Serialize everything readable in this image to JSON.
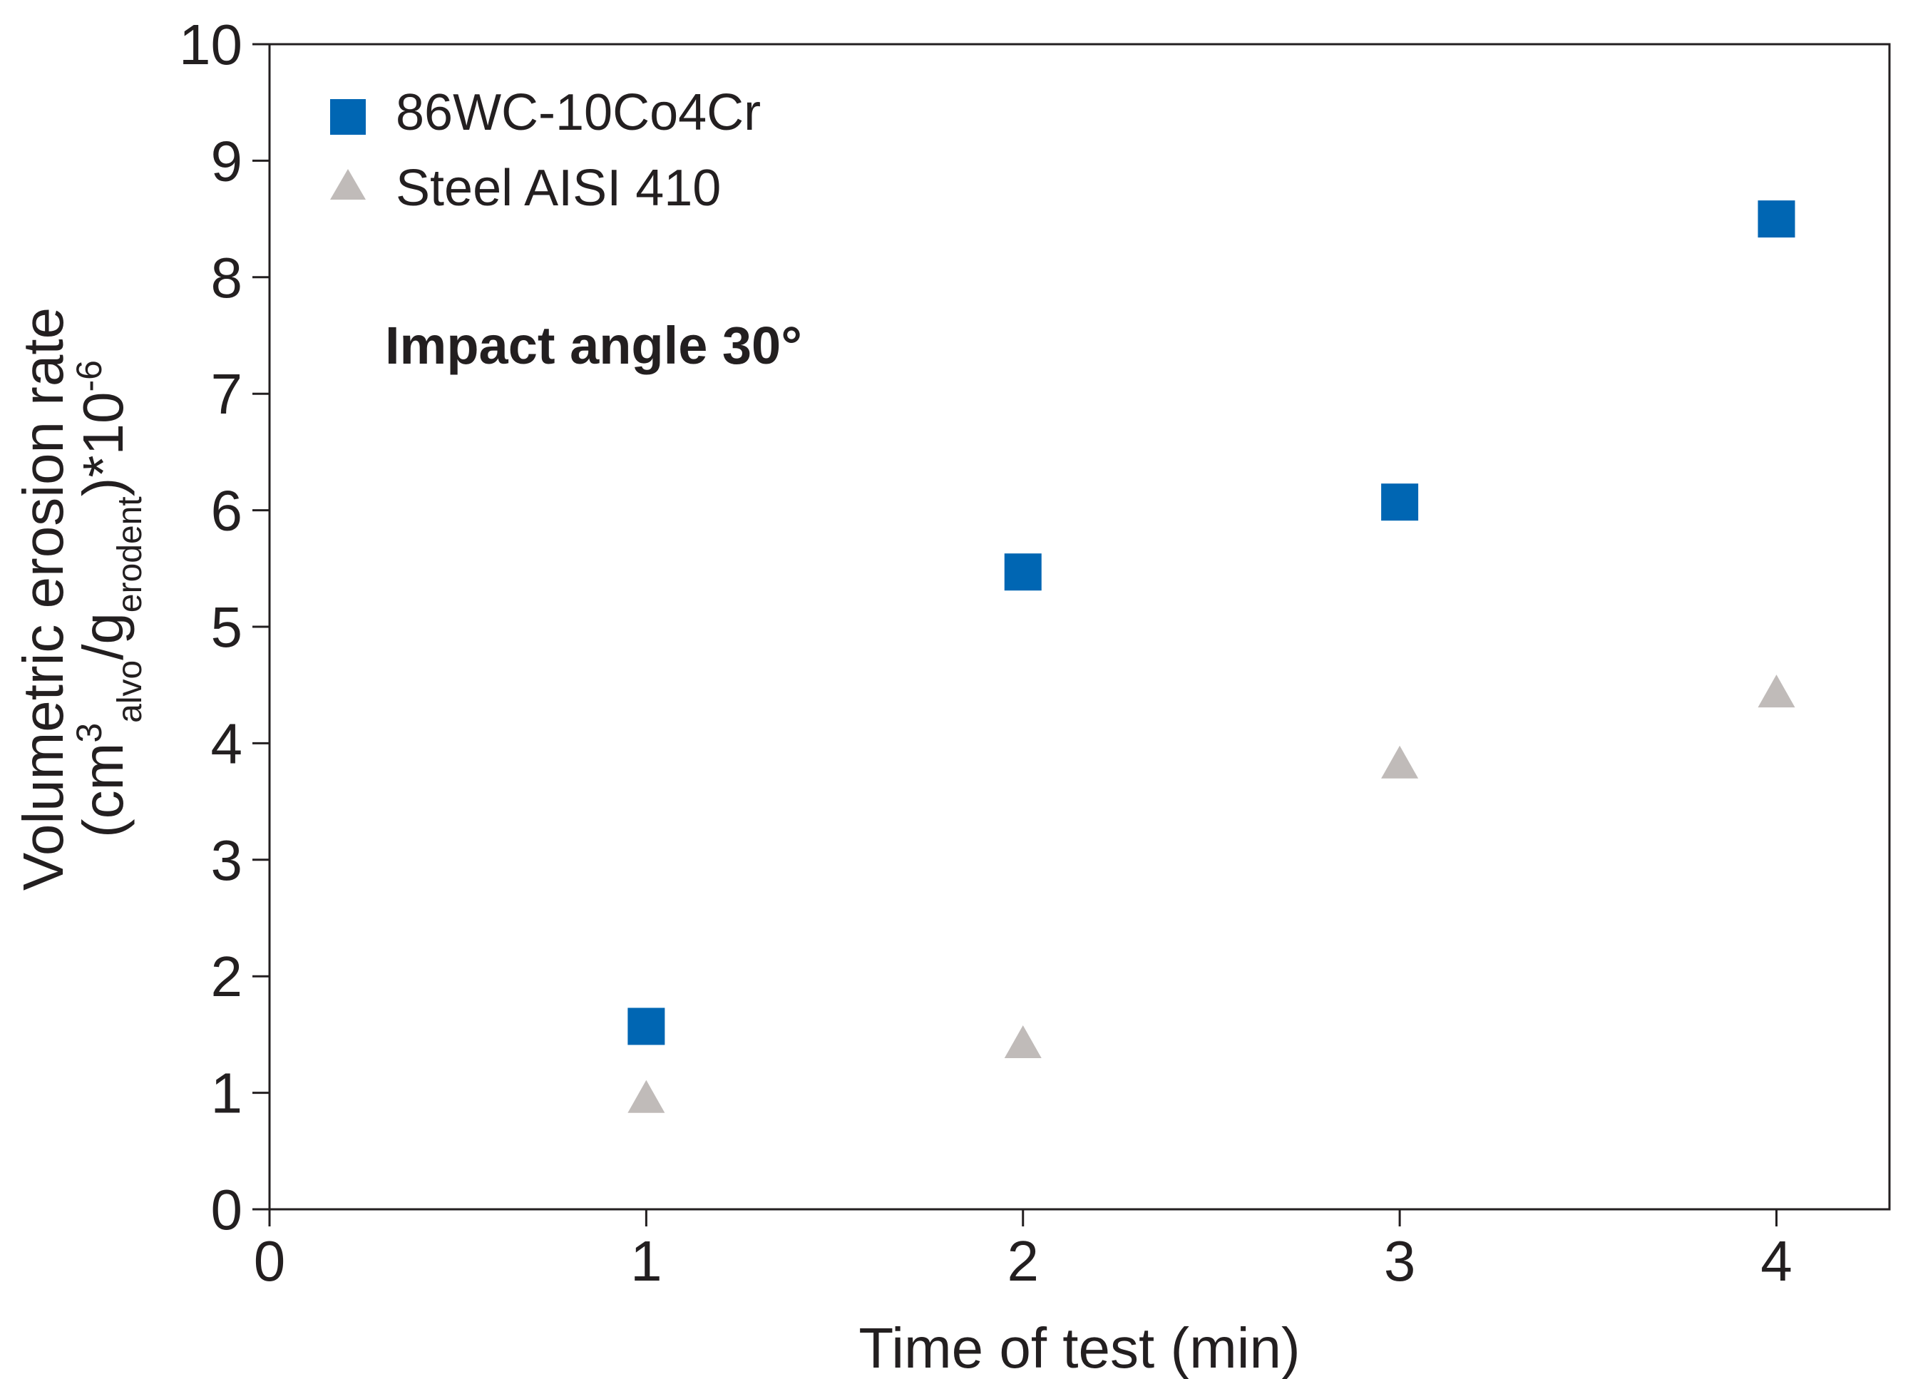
{
  "chart_data": {
    "type": "scatter",
    "title": "",
    "annotation": "Impact angle 30°",
    "xlabel": "Time of test (min)",
    "ylabel": {
      "line1": "Volumetric erosion rate",
      "line2_open": "(cm",
      "sup1": "3",
      "sub1": "alvo",
      "slash_g": "/g",
      "sub2": "erodent",
      "line2_close": ")*10",
      "sup2": "-6"
    },
    "xlim": [
      0,
      4.3
    ],
    "ylim": [
      0,
      10
    ],
    "xticks": [
      "0",
      "1",
      "2",
      "3",
      "4"
    ],
    "yticks": [
      "0",
      "1",
      "2",
      "3",
      "4",
      "5",
      "6",
      "7",
      "8",
      "9",
      "10"
    ],
    "grid": false,
    "legend_position": "top-left",
    "series": [
      {
        "name": "86WC-10Co4Cr",
        "marker": "square",
        "color": "#0066b3",
        "x": [
          1,
          2,
          3,
          4
        ],
        "y": [
          1.57,
          5.47,
          6.07,
          8.5
        ]
      },
      {
        "name": "Steel AISI 410",
        "marker": "triangle",
        "color": "#c0bbb9",
        "x": [
          1,
          2,
          3,
          4
        ],
        "y": [
          0.95,
          1.42,
          3.82,
          4.43
        ]
      }
    ]
  }
}
